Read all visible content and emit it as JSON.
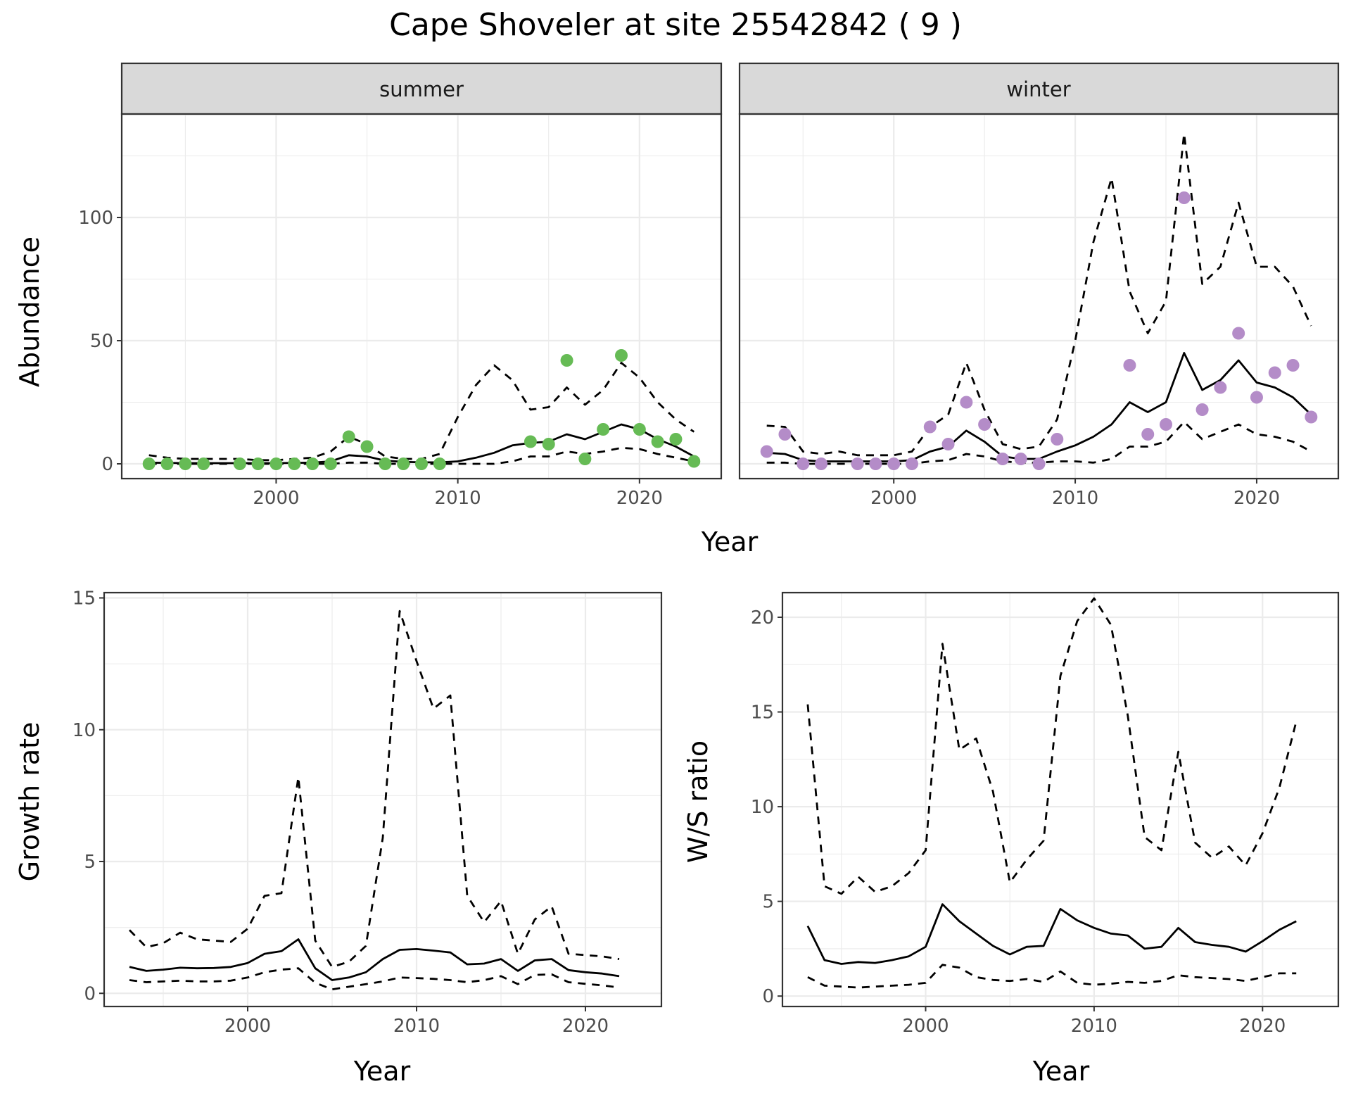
{
  "title": "Cape Shoveler at site 25542842 ( 9 )",
  "colors": {
    "summer_points": "#66bb55",
    "winter_points": "#b48cc8",
    "lines": "#000000",
    "strip_bg": "#d9d9d9"
  },
  "chart_data": [
    {
      "id": "abundance",
      "type": "line",
      "facets": [
        "summer",
        "winter"
      ],
      "xlabel": "Year",
      "ylabel": "Abundance",
      "xlim": [
        1991.5,
        2024.5
      ],
      "ylim": [
        -6,
        142
      ],
      "xticks": [
        2000,
        2010,
        2020
      ],
      "yticks": [
        0,
        50,
        100
      ],
      "grid": true,
      "panels": [
        {
          "facet": "summer",
          "point_color": "#66bb55",
          "x": [
            1993,
            1994,
            1995,
            1996,
            1997,
            1998,
            1999,
            2000,
            2001,
            2002,
            2003,
            2004,
            2005,
            2006,
            2007,
            2008,
            2009,
            2010,
            2011,
            2012,
            2013,
            2014,
            2015,
            2016,
            2017,
            2018,
            2019,
            2020,
            2021,
            2022,
            2023
          ],
          "series": [
            {
              "style": "solid",
              "values": [
                0.5,
                0.4,
                0.3,
                0.3,
                0.3,
                0.3,
                0.3,
                0.3,
                0.4,
                0.5,
                1,
                3.5,
                3,
                1.3,
                0.8,
                0.6,
                0.6,
                1,
                2.5,
                4.5,
                7.5,
                8.5,
                9,
                12,
                10,
                13,
                16,
                14,
                10,
                7,
                3
              ]
            },
            {
              "style": "dashed",
              "values": [
                3.5,
                2.5,
                2,
                2,
                2,
                2,
                1.5,
                1.5,
                2,
                2.5,
                5,
                11,
                8,
                3,
                2,
                2,
                4,
                19,
                32,
                40,
                34,
                22,
                23,
                31,
                24,
                30,
                41,
                35,
                25,
                18,
                13
              ]
            },
            {
              "style": "dashed",
              "values": [
                0,
                0,
                0,
                0,
                0,
                0,
                0,
                0,
                0,
                0,
                0,
                0.5,
                0.5,
                0,
                0,
                0,
                0,
                0,
                0,
                0,
                1,
                3,
                3,
                5,
                4,
                5,
                6.5,
                6,
                4,
                2.5,
                1
              ]
            }
          ],
          "points": {
            "x": [
              1993,
              1994,
              1995,
              1996,
              1998,
              1999,
              2000,
              2001,
              2002,
              2003,
              2004,
              2005,
              2006,
              2007,
              2008,
              2009,
              2014,
              2015,
              2016,
              2017,
              2018,
              2019,
              2020,
              2021,
              2022,
              2023
            ],
            "y": [
              0,
              0,
              0,
              0,
              0,
              0,
              0,
              0,
              0,
              0,
              11,
              7,
              0,
              0,
              0,
              0,
              9,
              8,
              42,
              2,
              14,
              44,
              14,
              9,
              10,
              1
            ]
          }
        },
        {
          "facet": "winter",
          "point_color": "#b48cc8",
          "x": [
            1993,
            1994,
            1995,
            1996,
            1997,
            1998,
            1999,
            2000,
            2001,
            2002,
            2003,
            2004,
            2005,
            2006,
            2007,
            2008,
            2009,
            2010,
            2011,
            2012,
            2013,
            2014,
            2015,
            2016,
            2017,
            2018,
            2019,
            2020,
            2021,
            2022,
            2023
          ],
          "series": [
            {
              "style": "solid",
              "values": [
                4.5,
                4,
                1.5,
                1,
                1,
                1,
                1,
                1,
                1.5,
                5,
                7,
                13.5,
                9,
                3,
                2,
                2,
                5,
                7.5,
                11,
                16,
                25,
                21,
                25,
                45,
                30,
                34,
                42,
                33,
                31,
                27,
                20
              ]
            },
            {
              "style": "dashed",
              "values": [
                15.5,
                15,
                5,
                4,
                5,
                3.5,
                3.5,
                3.5,
                5,
                15,
                20,
                41,
                22,
                8,
                6,
                7,
                18,
                50,
                90,
                116,
                70,
                53,
                66,
                134,
                73,
                80,
                106,
                80,
                80,
                72,
                56
              ]
            },
            {
              "style": "dashed",
              "values": [
                0.5,
                0.5,
                0,
                0,
                0,
                0,
                0,
                0,
                0,
                1,
                1.5,
                4,
                3,
                1,
                0.5,
                0.5,
                1,
                1,
                0.5,
                2,
                7,
                7,
                9,
                17,
                10,
                13,
                16,
                12,
                11,
                9,
                5
              ]
            }
          ],
          "points": {
            "x": [
              1993,
              1994,
              1995,
              1996,
              1998,
              1999,
              2000,
              2001,
              2002,
              2003,
              2004,
              2005,
              2006,
              2007,
              2008,
              2009,
              2013,
              2014,
              2015,
              2016,
              2017,
              2018,
              2019,
              2020,
              2021,
              2022,
              2023
            ],
            "y": [
              5,
              12,
              0,
              0,
              0,
              0,
              0,
              0,
              15,
              8,
              25,
              16,
              2,
              2,
              0,
              10,
              40,
              12,
              16,
              108,
              22,
              31,
              53,
              27,
              37,
              40,
              19
            ]
          }
        }
      ]
    },
    {
      "id": "growth",
      "type": "line",
      "xlabel": "Year",
      "ylabel": "Growth rate",
      "xlim": [
        1991.5,
        2024.5
      ],
      "ylim": [
        -0.5,
        15.2
      ],
      "xticks": [
        2000,
        2010,
        2020
      ],
      "yticks": [
        0,
        5,
        10,
        15
      ],
      "grid": true,
      "x": [
        1993,
        1994,
        1995,
        1996,
        1997,
        1998,
        1999,
        2000,
        2001,
        2002,
        2003,
        2004,
        2005,
        2006,
        2007,
        2008,
        2009,
        2010,
        2011,
        2012,
        2013,
        2014,
        2015,
        2016,
        2017,
        2018,
        2019,
        2020,
        2021,
        2022
      ],
      "series": [
        {
          "style": "solid",
          "values": [
            1.0,
            0.85,
            0.9,
            0.97,
            0.95,
            0.96,
            1.0,
            1.15,
            1.5,
            1.6,
            2.05,
            0.95,
            0.5,
            0.6,
            0.8,
            1.3,
            1.65,
            1.68,
            1.62,
            1.55,
            1.1,
            1.13,
            1.3,
            0.85,
            1.25,
            1.3,
            0.88,
            0.8,
            0.75,
            0.65
          ]
        },
        {
          "style": "dashed",
          "values": [
            2.4,
            1.75,
            1.9,
            2.3,
            2.05,
            2.0,
            1.95,
            2.45,
            3.7,
            3.8,
            8.2,
            2.0,
            1.0,
            1.2,
            1.8,
            5.9,
            14.5,
            12.6,
            10.8,
            11.3,
            3.7,
            2.7,
            3.5,
            1.5,
            2.8,
            3.3,
            1.5,
            1.45,
            1.4,
            1.3
          ]
        },
        {
          "style": "dashed",
          "values": [
            0.5,
            0.42,
            0.45,
            0.48,
            0.45,
            0.45,
            0.48,
            0.6,
            0.8,
            0.9,
            0.95,
            0.4,
            0.15,
            0.25,
            0.35,
            0.45,
            0.6,
            0.58,
            0.55,
            0.5,
            0.42,
            0.5,
            0.65,
            0.35,
            0.7,
            0.72,
            0.42,
            0.36,
            0.3,
            0.22
          ]
        }
      ]
    },
    {
      "id": "ws_ratio",
      "type": "line",
      "xlabel": "Year",
      "ylabel": "W/S ratio",
      "xlim": [
        1991.5,
        2024.5
      ],
      "ylim": [
        -0.55,
        21.3
      ],
      "xticks": [
        2000,
        2010,
        2020
      ],
      "yticks": [
        0,
        5,
        10,
        15,
        20
      ],
      "grid": true,
      "x": [
        1993,
        1994,
        1995,
        1996,
        1997,
        1998,
        1999,
        2000,
        2001,
        2002,
        2003,
        2004,
        2005,
        2006,
        2007,
        2008,
        2009,
        2010,
        2011,
        2012,
        2013,
        2014,
        2015,
        2016,
        2017,
        2018,
        2019,
        2020,
        2021,
        2022
      ],
      "series": [
        {
          "style": "solid",
          "values": [
            3.7,
            1.9,
            1.7,
            1.8,
            1.75,
            1.9,
            2.1,
            2.6,
            4.85,
            3.95,
            3.3,
            2.65,
            2.2,
            2.6,
            2.65,
            4.6,
            4.0,
            3.6,
            3.3,
            3.2,
            2.5,
            2.6,
            3.6,
            2.85,
            2.7,
            2.6,
            2.35,
            2.9,
            3.5,
            3.95
          ]
        },
        {
          "style": "dashed",
          "values": [
            15.4,
            5.8,
            5.4,
            6.3,
            5.5,
            5.8,
            6.5,
            7.7,
            18.6,
            13.0,
            13.6,
            10.8,
            6.0,
            7.2,
            8.2,
            16.9,
            19.8,
            21.0,
            19.6,
            14.8,
            8.4,
            7.7,
            12.9,
            8.1,
            7.3,
            7.9,
            6.9,
            8.6,
            11.0,
            14.5
          ]
        },
        {
          "style": "dashed",
          "values": [
            1.0,
            0.55,
            0.5,
            0.45,
            0.5,
            0.55,
            0.6,
            0.7,
            1.65,
            1.5,
            1.0,
            0.85,
            0.8,
            0.9,
            0.75,
            1.3,
            0.7,
            0.6,
            0.65,
            0.75,
            0.7,
            0.8,
            1.1,
            1.0,
            0.95,
            0.9,
            0.8,
            1.0,
            1.2,
            1.2
          ]
        }
      ]
    }
  ]
}
